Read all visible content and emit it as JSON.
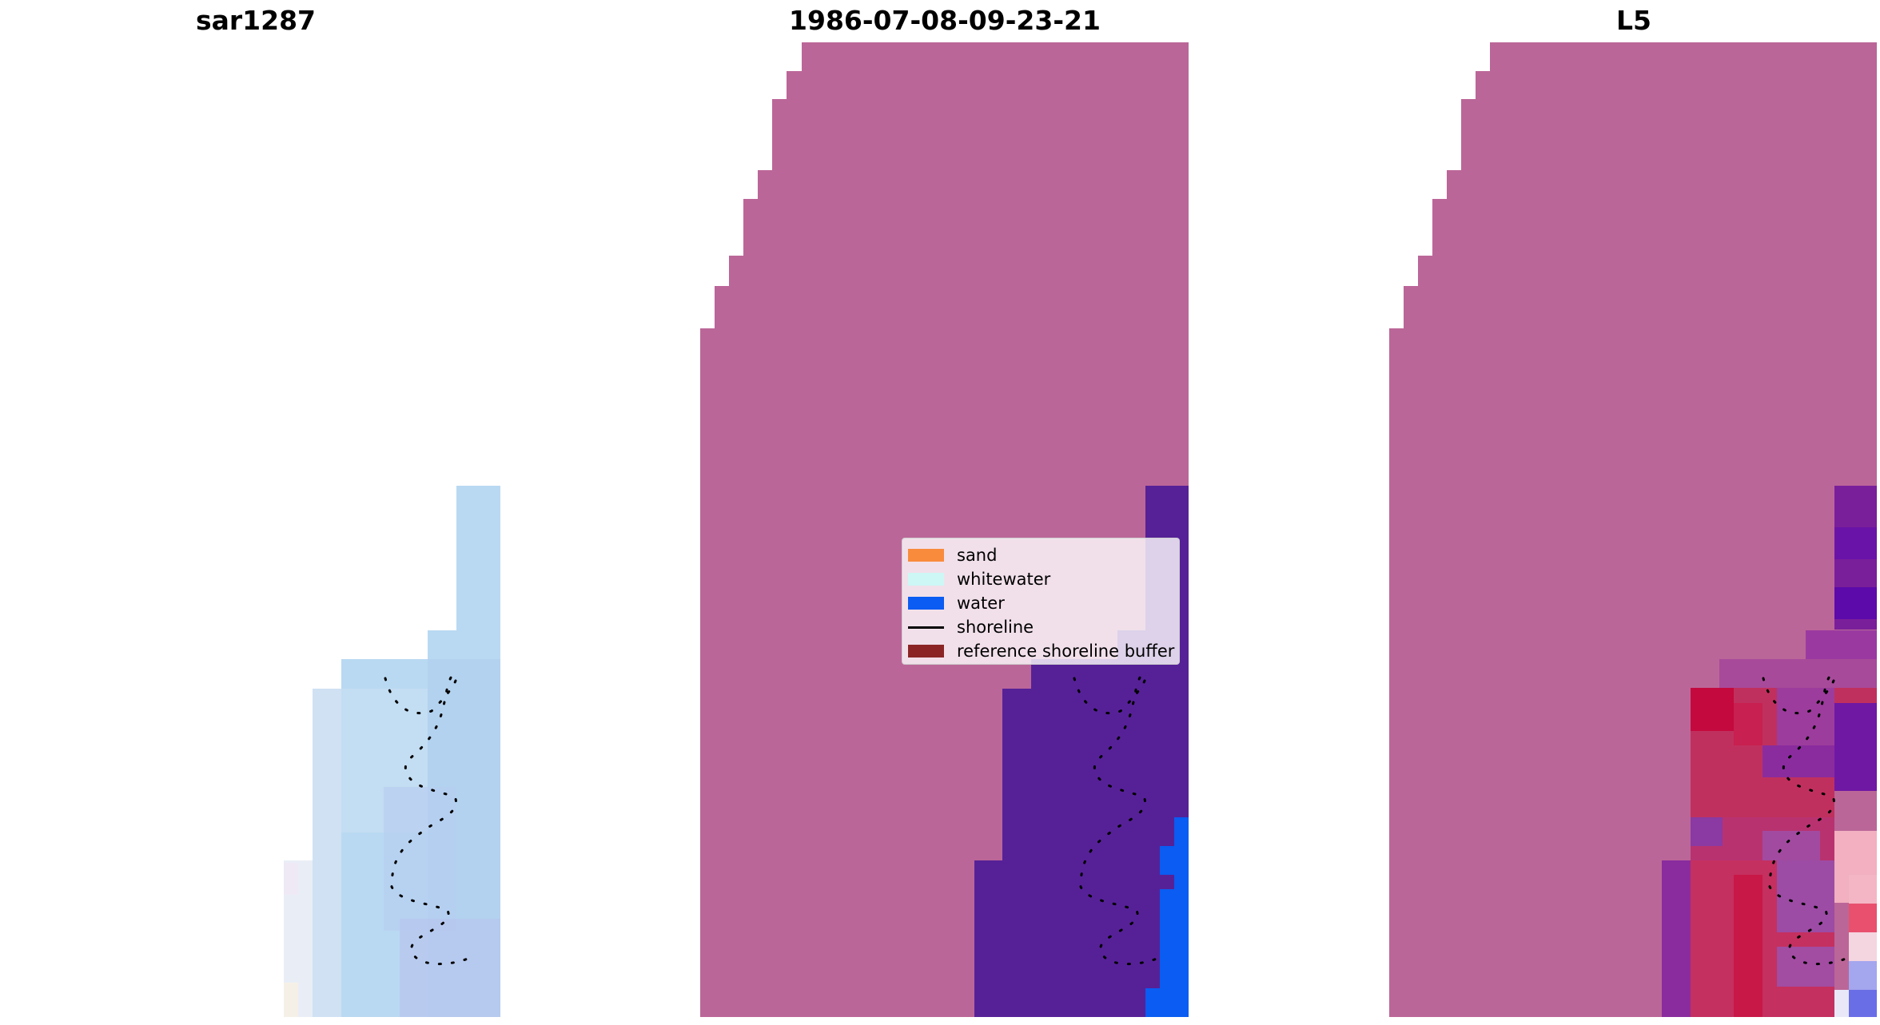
{
  "panels": [
    {
      "title": "sar1287"
    },
    {
      "title": "1986-07-08-09-23-21"
    },
    {
      "title": "L5"
    }
  ],
  "legend": {
    "items": [
      {
        "label": "sand",
        "color": "#f98b3c",
        "kind": "patch"
      },
      {
        "label": "whitewater",
        "color": "#ccf7f5",
        "kind": "patch"
      },
      {
        "label": "water",
        "color": "#0a5cf2",
        "kind": "patch"
      },
      {
        "label": "shoreline",
        "color": "#000000",
        "kind": "line"
      },
      {
        "label": "reference shoreline buffer",
        "color": "#8b2525",
        "kind": "patch"
      }
    ]
  },
  "colors": {
    "land": "#bb6698",
    "whitewater_overlay": "#562197",
    "water": "#0a5cf2",
    "sar_light_blue": "#b9d9f2",
    "l5_red": "#c41848",
    "l5_purple": "#7a2a98"
  }
}
